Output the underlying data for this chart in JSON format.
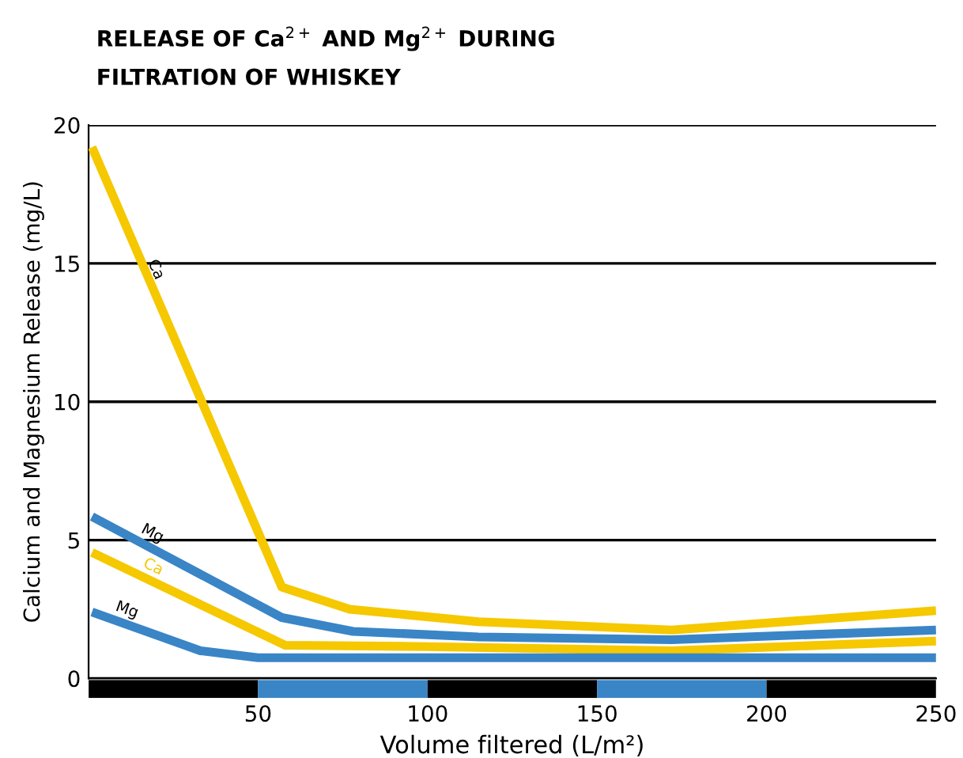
{
  "chart_data": {
    "type": "line",
    "title": "RELEASE OF Ca$^{2+}$ AND Mg$^{2+}$ DURING\nFILTRATION OF WHISKEY",
    "xlabel": "Volume filtered (L/m²)",
    "ylabel": "Calcium and Magnesium Release (mg/L)",
    "series": [
      {
        "name": "Ca",
        "color": "#f5c800",
        "x": [
          1,
          57,
          77,
          115,
          172,
          250
        ],
        "values": [
          19.2,
          3.3,
          2.5,
          2.05,
          1.75,
          2.45
        ]
      },
      {
        "name": "Mg",
        "color": "#3a85c6",
        "x": [
          1,
          57,
          78,
          115,
          172,
          250
        ],
        "values": [
          5.85,
          2.2,
          1.7,
          1.5,
          1.4,
          1.75
        ]
      },
      {
        "name": "Ca",
        "color": "#f5c800",
        "x": [
          1,
          58,
          100,
          172,
          250
        ],
        "values": [
          4.55,
          1.2,
          1.15,
          1.0,
          1.35
        ]
      },
      {
        "name": "Mg",
        "color": "#3a85c6",
        "x": [
          1,
          33,
          50,
          250
        ],
        "values": [
          2.4,
          1.0,
          0.75,
          0.75
        ]
      }
    ],
    "xlim": [
      0,
      250
    ],
    "ylim": [
      0,
      20
    ],
    "xticks": [
      50,
      100,
      150,
      200,
      250
    ],
    "yticks": [
      0,
      5,
      10,
      15,
      20
    ],
    "grid": "y",
    "legend": false,
    "marker": "none",
    "line_style": "solid"
  }
}
